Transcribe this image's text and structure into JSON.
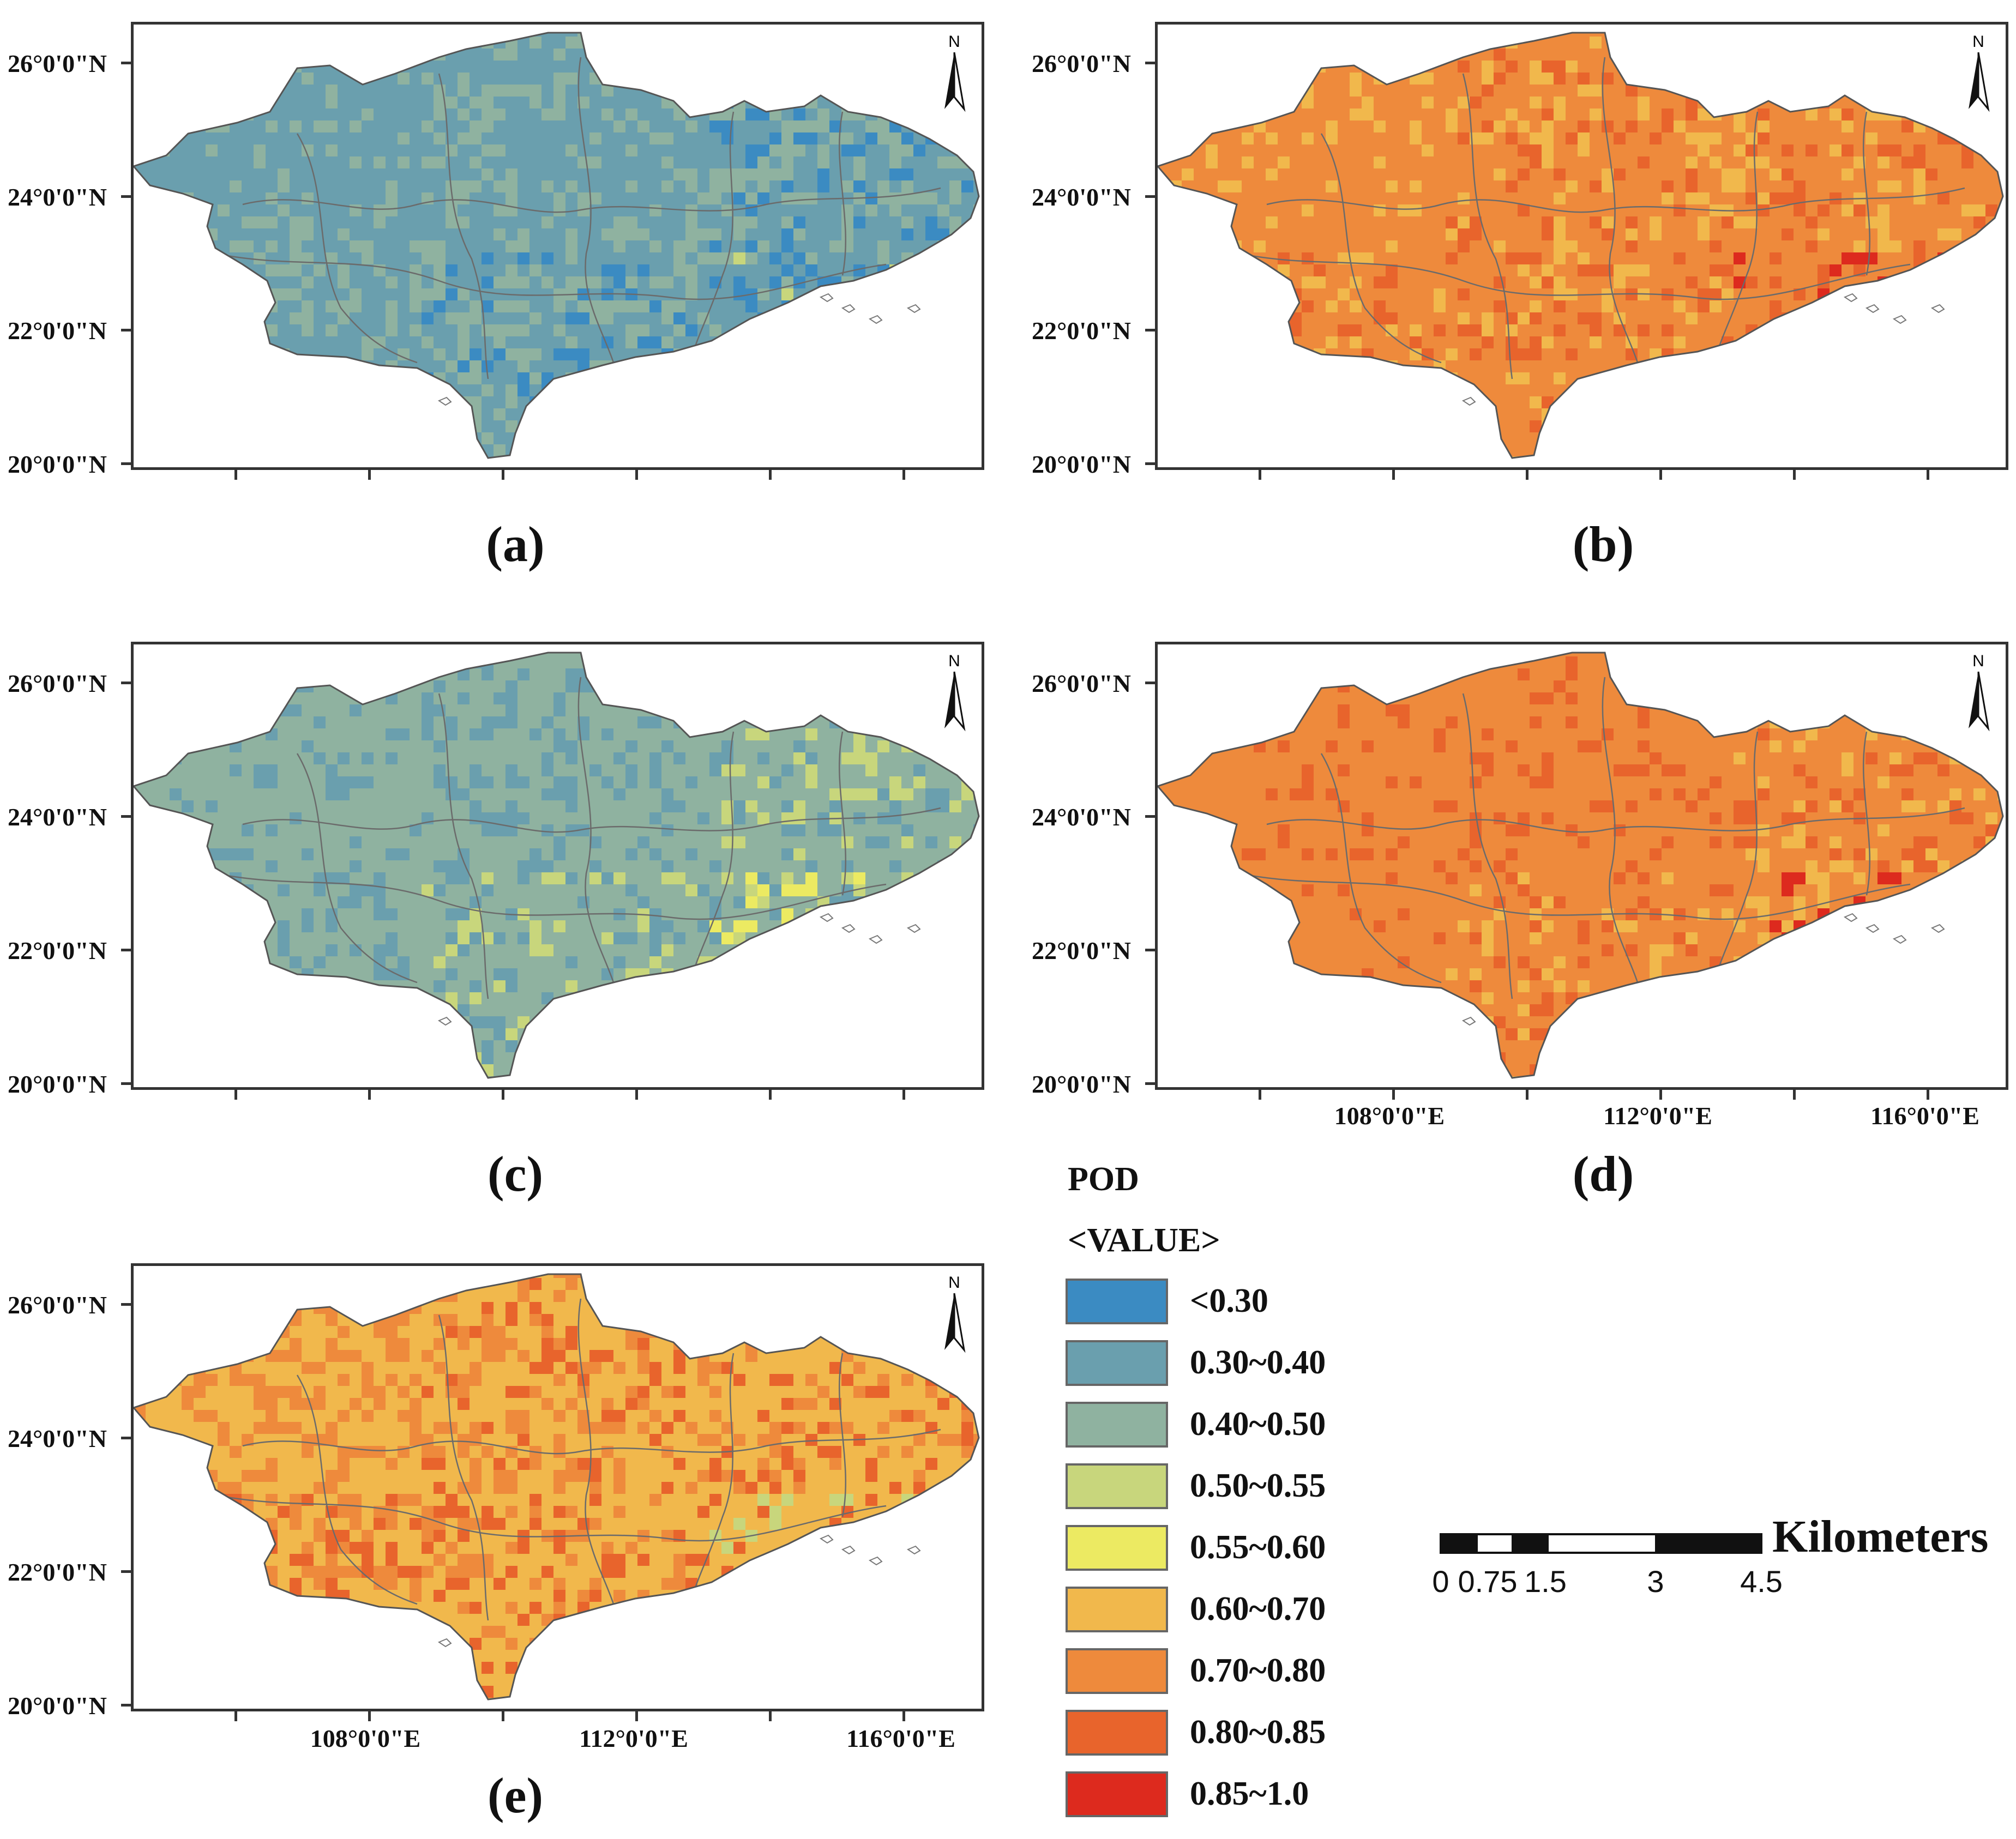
{
  "figure": {
    "lat_labels": [
      "26°0'0\"N",
      "24°0'0\"N",
      "22°0'0\"N",
      "20°0'0\"N"
    ],
    "lon_labels": [
      "108°0'0\"E",
      "112°0'0\"E",
      "116°0'0\"E"
    ],
    "north_label": "N"
  },
  "panels": [
    {
      "id": "a",
      "caption": "(a)",
      "palette": [
        "#6a9fae",
        "#6a9fae",
        "#8fb2a0",
        "#8fb2a0",
        "#3b8bc2",
        "#c8d67c",
        "#6a9fae"
      ],
      "show_lon": false
    },
    {
      "id": "b",
      "caption": "(b)",
      "palette": [
        "#ee8a3c",
        "#ee8a3c",
        "#f1b84c",
        "#e8642c",
        "#ee8a3c",
        "#dd2a1e",
        "#f1b84c"
      ],
      "show_lon": false
    },
    {
      "id": "c",
      "caption": "(c)",
      "palette": [
        "#8fb2a0",
        "#6a9fae",
        "#8fb2a0",
        "#6a9fae",
        "#c8d67c",
        "#ecea62",
        "#8fb2a0"
      ],
      "show_lon": false
    },
    {
      "id": "d",
      "caption": "(d)",
      "palette": [
        "#ee8a3c",
        "#ee8a3c",
        "#e8642c",
        "#ee8a3c",
        "#f1b84c",
        "#dd2a1e",
        "#ee8a3c"
      ],
      "show_lon": true
    },
    {
      "id": "e",
      "caption": "(e)",
      "palette": [
        "#f1b84c",
        "#ee8a3c",
        "#ee8a3c",
        "#e8642c",
        "#f1b84c",
        "#c8d67c",
        "#dd2a1e"
      ],
      "show_lon": true
    }
  ],
  "legend": {
    "title": "POD",
    "subtitle": "<VALUE>",
    "items": [
      {
        "label": "<0.30",
        "color": "#3b8bc2"
      },
      {
        "label": "0.30~0.40",
        "color": "#6a9fae"
      },
      {
        "label": "0.40~0.50",
        "color": "#8fb2a0"
      },
      {
        "label": "0.50~0.55",
        "color": "#c8d67c"
      },
      {
        "label": "0.55~0.60",
        "color": "#ecea62"
      },
      {
        "label": "0.60~0.70",
        "color": "#f1b84c"
      },
      {
        "label": "0.70~0.80",
        "color": "#ee8a3c"
      },
      {
        "label": "0.80~0.85",
        "color": "#e8642c"
      },
      {
        "label": "0.85~1.0",
        "color": "#dd2a1e"
      }
    ]
  },
  "scalebar": {
    "ticks": [
      "0",
      "0.75",
      "1.5",
      "3",
      "4.5"
    ],
    "unit": "Kilometers"
  }
}
